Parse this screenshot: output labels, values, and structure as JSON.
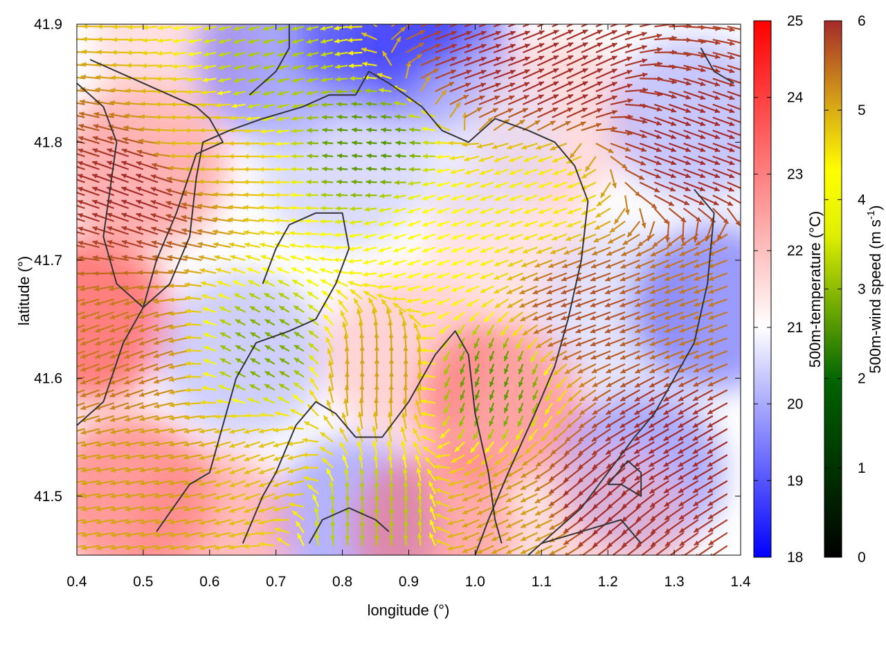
{
  "chart_data": {
    "type": "heatmap",
    "title": "",
    "xlabel": "longitude (°)",
    "ylabel": "latitude (°)",
    "xlim": [
      0.4,
      1.4
    ],
    "ylim": [
      41.45,
      41.9
    ],
    "x_ticks": [
      "0.4",
      "0.5",
      "0.6",
      "0.7",
      "0.8",
      "0.9",
      "1.0",
      "1.1",
      "1.2",
      "1.3",
      "1.4"
    ],
    "y_ticks": [
      "41.5",
      "41.6",
      "41.7",
      "41.8",
      "41.9"
    ],
    "grid": false,
    "overlay": "wind vectors colored by speed, with terrain contour lines",
    "colorbars": [
      {
        "label": "500m-temperature (°C)",
        "range": [
          18,
          25
        ],
        "ticks": [
          "18",
          "19",
          "20",
          "21",
          "22",
          "23",
          "24",
          "25"
        ],
        "colors": [
          "#0000ff",
          "#ffffff",
          "#ff0000"
        ]
      },
      {
        "label": "500m-wind speed (m s",
        "label_sup": "-1",
        "label_end": ")",
        "range": [
          0,
          6
        ],
        "ticks": [
          "0",
          "1",
          "2",
          "3",
          "4",
          "5",
          "6"
        ],
        "colors": [
          "#000000",
          "#006400",
          "#ffff00",
          "#d4a017",
          "#a52a2a"
        ]
      }
    ],
    "temperature_field": [
      {
        "x": 0.42,
        "y": 41.65,
        "v": 24.8
      },
      {
        "x": 0.48,
        "y": 41.5,
        "v": 24.0
      },
      {
        "x": 0.5,
        "y": 41.78,
        "v": 23.5
      },
      {
        "x": 0.55,
        "y": 41.88,
        "v": 22.3
      },
      {
        "x": 0.7,
        "y": 41.87,
        "v": 19.3
      },
      {
        "x": 0.86,
        "y": 41.89,
        "v": 18.7
      },
      {
        "x": 0.93,
        "y": 41.88,
        "v": 18.4
      },
      {
        "x": 0.8,
        "y": 41.78,
        "v": 20.6
      },
      {
        "x": 0.65,
        "y": 41.62,
        "v": 20.3
      },
      {
        "x": 0.9,
        "y": 41.62,
        "v": 22.6
      },
      {
        "x": 0.82,
        "y": 41.48,
        "v": 19.6
      },
      {
        "x": 0.94,
        "y": 41.47,
        "v": 23.6
      },
      {
        "x": 1.04,
        "y": 41.58,
        "v": 23.8
      },
      {
        "x": 1.05,
        "y": 41.72,
        "v": 22.2
      },
      {
        "x": 1.12,
        "y": 41.82,
        "v": 22.4
      },
      {
        "x": 1.22,
        "y": 41.66,
        "v": 20.8
      },
      {
        "x": 1.36,
        "y": 41.66,
        "v": 19.0
      },
      {
        "x": 1.33,
        "y": 41.82,
        "v": 20.1
      },
      {
        "x": 1.25,
        "y": 41.52,
        "v": 19.4
      },
      {
        "x": 1.2,
        "y": 41.47,
        "v": 22.5
      },
      {
        "x": 1.0,
        "y": 41.8,
        "v": 21.0
      },
      {
        "x": 0.6,
        "y": 41.47,
        "v": 23.2
      }
    ],
    "wind_regions": [
      {
        "x": 0.5,
        "y": 41.76,
        "speed": 6.0,
        "dir": 160
      },
      {
        "x": 0.48,
        "y": 41.62,
        "speed": 5.0,
        "dir": 200
      },
      {
        "x": 0.55,
        "y": 41.52,
        "speed": 4.5,
        "dir": 190
      },
      {
        "x": 0.7,
        "y": 41.86,
        "speed": 2.5,
        "dir": 195
      },
      {
        "x": 0.6,
        "y": 41.8,
        "speed": 4.0,
        "dir": 180
      },
      {
        "x": 0.85,
        "y": 41.8,
        "speed": 2.0,
        "dir": 175
      },
      {
        "x": 0.7,
        "y": 41.62,
        "speed": 2.2,
        "dir": 150
      },
      {
        "x": 0.68,
        "y": 41.52,
        "speed": 4.0,
        "dir": 200
      },
      {
        "x": 0.85,
        "y": 41.6,
        "speed": 4.5,
        "dir": 90
      },
      {
        "x": 0.84,
        "y": 41.48,
        "speed": 2.5,
        "dir": 90
      },
      {
        "x": 0.95,
        "y": 41.72,
        "speed": 3.0,
        "dir": 200
      },
      {
        "x": 1.03,
        "y": 41.6,
        "speed": 2.0,
        "dir": 250
      },
      {
        "x": 1.0,
        "y": 41.87,
        "speed": 6.0,
        "dir": 20
      },
      {
        "x": 1.12,
        "y": 41.85,
        "speed": 6.0,
        "dir": 25
      },
      {
        "x": 1.1,
        "y": 41.76,
        "speed": 3.2,
        "dir": 200
      },
      {
        "x": 1.18,
        "y": 41.66,
        "speed": 5.5,
        "dir": 200
      },
      {
        "x": 1.3,
        "y": 41.8,
        "speed": 6.0,
        "dir": 340
      },
      {
        "x": 1.35,
        "y": 41.66,
        "speed": 5.0,
        "dir": 200
      },
      {
        "x": 1.3,
        "y": 41.55,
        "speed": 6.0,
        "dir": 210
      },
      {
        "x": 1.2,
        "y": 41.5,
        "speed": 6.0,
        "dir": 220
      },
      {
        "x": 1.08,
        "y": 41.48,
        "speed": 4.5,
        "dir": 205
      }
    ],
    "contours": [
      [
        [
          0.42,
          41.87
        ],
        [
          0.5,
          41.85
        ],
        [
          0.58,
          41.83
        ],
        [
          0.6,
          41.82
        ],
        [
          0.62,
          41.8
        ],
        [
          0.58,
          41.79
        ],
        [
          0.55,
          41.74
        ],
        [
          0.52,
          41.7
        ],
        [
          0.5,
          41.66
        ],
        [
          0.47,
          41.63
        ],
        [
          0.44,
          41.58
        ],
        [
          0.42,
          41.57
        ],
        [
          0.4,
          41.56
        ]
      ],
      [
        [
          0.4,
          41.85
        ],
        [
          0.44,
          41.83
        ],
        [
          0.46,
          41.8
        ],
        [
          0.45,
          41.76
        ],
        [
          0.44,
          41.72
        ],
        [
          0.46,
          41.68
        ],
        [
          0.5,
          41.66
        ],
        [
          0.54,
          41.68
        ],
        [
          0.57,
          41.72
        ],
        [
          0.58,
          41.77
        ],
        [
          0.59,
          41.8
        ],
        [
          0.63,
          41.81
        ],
        [
          0.68,
          41.82
        ],
        [
          0.74,
          41.83
        ],
        [
          0.78,
          41.84
        ],
        [
          0.82,
          41.84
        ],
        [
          0.84,
          41.86
        ],
        [
          0.87,
          41.85
        ],
        [
          0.92,
          41.83
        ],
        [
          0.95,
          41.81
        ],
        [
          0.99,
          41.8
        ],
        [
          1.03,
          41.82
        ],
        [
          1.08,
          41.81
        ],
        [
          1.12,
          41.8
        ],
        [
          1.15,
          41.78
        ],
        [
          1.17,
          41.75
        ],
        [
          1.16,
          41.7
        ],
        [
          1.14,
          41.65
        ],
        [
          1.12,
          41.61
        ],
        [
          1.09,
          41.57
        ],
        [
          1.05,
          41.52
        ],
        [
          1.02,
          41.48
        ],
        [
          1.0,
          41.45
        ]
      ],
      [
        [
          0.52,
          41.47
        ],
        [
          0.57,
          41.51
        ],
        [
          0.6,
          41.52
        ],
        [
          0.62,
          41.56
        ],
        [
          0.64,
          41.6
        ],
        [
          0.67,
          41.63
        ],
        [
          0.72,
          41.64
        ],
        [
          0.76,
          41.65
        ],
        [
          0.79,
          41.68
        ],
        [
          0.81,
          41.71
        ],
        [
          0.8,
          41.74
        ],
        [
          0.76,
          41.74
        ],
        [
          0.72,
          41.73
        ],
        [
          0.7,
          41.71
        ],
        [
          0.68,
          41.68
        ]
      ],
      [
        [
          0.65,
          41.46
        ],
        [
          0.68,
          41.5
        ],
        [
          0.7,
          41.52
        ],
        [
          0.73,
          41.56
        ],
        [
          0.76,
          41.58
        ],
        [
          0.79,
          41.57
        ],
        [
          0.82,
          41.55
        ],
        [
          0.86,
          41.55
        ],
        [
          0.9,
          41.58
        ],
        [
          0.94,
          41.62
        ],
        [
          0.97,
          41.64
        ],
        [
          0.99,
          41.62
        ],
        [
          1.0,
          41.57
        ],
        [
          1.02,
          41.52
        ],
        [
          1.03,
          41.48
        ],
        [
          1.04,
          41.46
        ]
      ],
      [
        [
          1.33,
          41.76
        ],
        [
          1.36,
          41.74
        ],
        [
          1.35,
          41.68
        ],
        [
          1.33,
          41.63
        ],
        [
          1.3,
          41.6
        ],
        [
          1.27,
          41.57
        ],
        [
          1.24,
          41.55
        ],
        [
          1.2,
          41.52
        ],
        [
          1.16,
          41.49
        ],
        [
          1.12,
          41.47
        ],
        [
          1.08,
          41.45
        ]
      ],
      [
        [
          1.2,
          41.51
        ],
        [
          1.23,
          41.53
        ],
        [
          1.25,
          41.52
        ],
        [
          1.25,
          41.5
        ],
        [
          1.22,
          41.51
        ],
        [
          1.2,
          41.51
        ]
      ],
      [
        [
          1.1,
          41.46
        ],
        [
          1.16,
          41.47
        ],
        [
          1.22,
          41.48
        ],
        [
          1.25,
          41.46
        ]
      ],
      [
        [
          0.75,
          41.46
        ],
        [
          0.77,
          41.48
        ],
        [
          0.81,
          41.49
        ],
        [
          0.85,
          41.48
        ],
        [
          0.87,
          41.47
        ]
      ],
      [
        [
          0.66,
          41.84
        ],
        [
          0.7,
          41.86
        ],
        [
          0.72,
          41.88
        ],
        [
          0.72,
          41.9
        ]
      ],
      [
        [
          1.34,
          41.88
        ],
        [
          1.36,
          41.86
        ],
        [
          1.39,
          41.85
        ]
      ]
    ]
  }
}
